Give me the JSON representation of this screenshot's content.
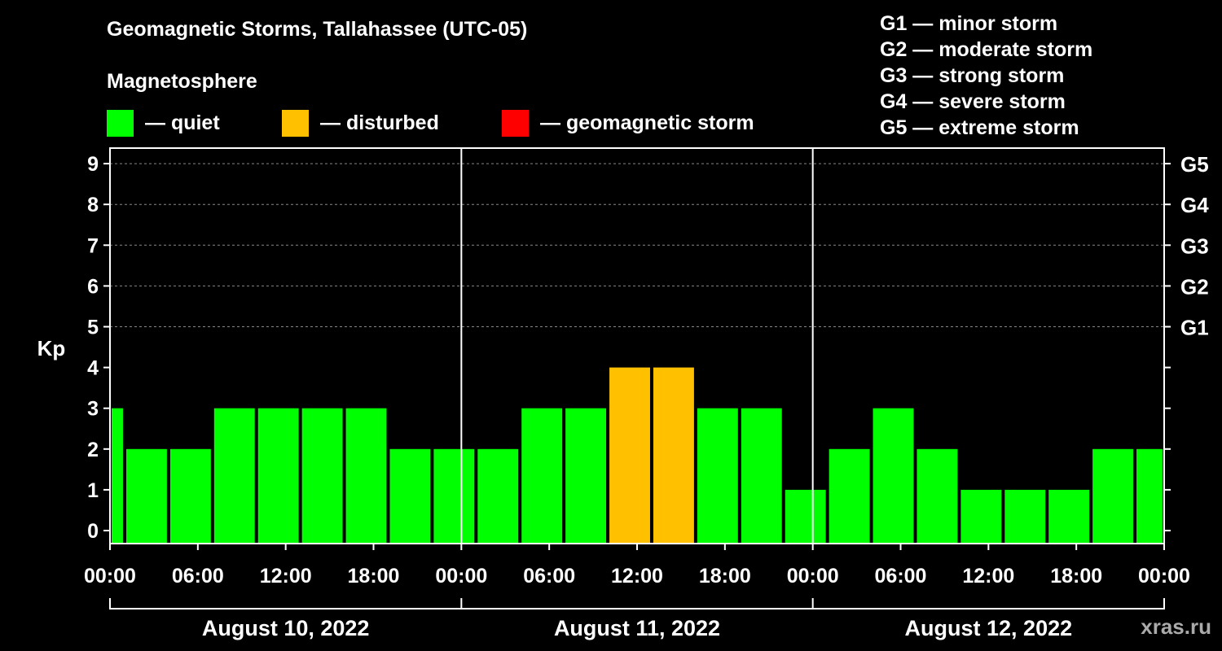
{
  "chart_data": {
    "type": "bar",
    "title": "Geomagnetic Storms, Tallahassee (UTC-05)",
    "subtitle": "Magnetosphere",
    "ylabel": "Kp",
    "ylim": [
      0,
      9
    ],
    "yticks": [
      "0",
      "1",
      "2",
      "3",
      "4",
      "5",
      "6",
      "7",
      "8",
      "9"
    ],
    "right_axis": [
      {
        "kp": 5,
        "label": "G1"
      },
      {
        "kp": 6,
        "label": "G2"
      },
      {
        "kp": 7,
        "label": "G3"
      },
      {
        "kp": 8,
        "label": "G4"
      },
      {
        "kp": 9,
        "label": "G5"
      }
    ],
    "x_tick_labels": [
      "00:00",
      "06:00",
      "12:00",
      "18:00",
      "00:00",
      "06:00",
      "12:00",
      "18:00",
      "00:00",
      "06:00",
      "12:00",
      "18:00",
      "00:00"
    ],
    "x_range_hours": [
      0,
      72
    ],
    "days": [
      "August 10, 2022",
      "August 11, 2022",
      "August 12, 2022"
    ],
    "bars": [
      {
        "start_hour": 0,
        "end_hour": 1,
        "kp": 3,
        "level": "quiet"
      },
      {
        "start_hour": 1,
        "end_hour": 4,
        "kp": 2,
        "level": "quiet"
      },
      {
        "start_hour": 4,
        "end_hour": 7,
        "kp": 2,
        "level": "quiet"
      },
      {
        "start_hour": 7,
        "end_hour": 10,
        "kp": 3,
        "level": "quiet"
      },
      {
        "start_hour": 10,
        "end_hour": 13,
        "kp": 3,
        "level": "quiet"
      },
      {
        "start_hour": 13,
        "end_hour": 16,
        "kp": 3,
        "level": "quiet"
      },
      {
        "start_hour": 16,
        "end_hour": 19,
        "kp": 3,
        "level": "quiet"
      },
      {
        "start_hour": 19,
        "end_hour": 22,
        "kp": 2,
        "level": "quiet"
      },
      {
        "start_hour": 22,
        "end_hour": 25,
        "kp": 2,
        "level": "quiet"
      },
      {
        "start_hour": 25,
        "end_hour": 28,
        "kp": 2,
        "level": "quiet"
      },
      {
        "start_hour": 28,
        "end_hour": 31,
        "kp": 3,
        "level": "quiet"
      },
      {
        "start_hour": 31,
        "end_hour": 34,
        "kp": 3,
        "level": "quiet"
      },
      {
        "start_hour": 34,
        "end_hour": 37,
        "kp": 4,
        "level": "disturbed"
      },
      {
        "start_hour": 37,
        "end_hour": 40,
        "kp": 4,
        "level": "disturbed"
      },
      {
        "start_hour": 40,
        "end_hour": 43,
        "kp": 3,
        "level": "quiet"
      },
      {
        "start_hour": 43,
        "end_hour": 46,
        "kp": 3,
        "level": "quiet"
      },
      {
        "start_hour": 46,
        "end_hour": 49,
        "kp": 1,
        "level": "quiet"
      },
      {
        "start_hour": 49,
        "end_hour": 52,
        "kp": 2,
        "level": "quiet"
      },
      {
        "start_hour": 52,
        "end_hour": 55,
        "kp": 3,
        "level": "quiet"
      },
      {
        "start_hour": 55,
        "end_hour": 58,
        "kp": 2,
        "level": "quiet"
      },
      {
        "start_hour": 58,
        "end_hour": 61,
        "kp": 1,
        "level": "quiet"
      },
      {
        "start_hour": 61,
        "end_hour": 64,
        "kp": 1,
        "level": "quiet"
      },
      {
        "start_hour": 64,
        "end_hour": 67,
        "kp": 1,
        "level": "quiet"
      },
      {
        "start_hour": 67,
        "end_hour": 70,
        "kp": 2,
        "level": "quiet"
      },
      {
        "start_hour": 70,
        "end_hour": 72,
        "kp": 2,
        "level": "quiet"
      }
    ],
    "grid": true
  },
  "legend": [
    {
      "key": "quiet",
      "label": "— quiet",
      "color": "#00ff00"
    },
    {
      "key": "disturbed",
      "label": "— disturbed",
      "color": "#ffc000"
    },
    {
      "key": "storm",
      "label": "— geomagnetic storm",
      "color": "#ff0000"
    }
  ],
  "storm_scale": [
    "G1 — minor storm",
    "G2 — moderate storm",
    "G3 — strong storm",
    "G4 — severe storm",
    "G5 — extreme storm"
  ],
  "watermark": "xras.ru"
}
